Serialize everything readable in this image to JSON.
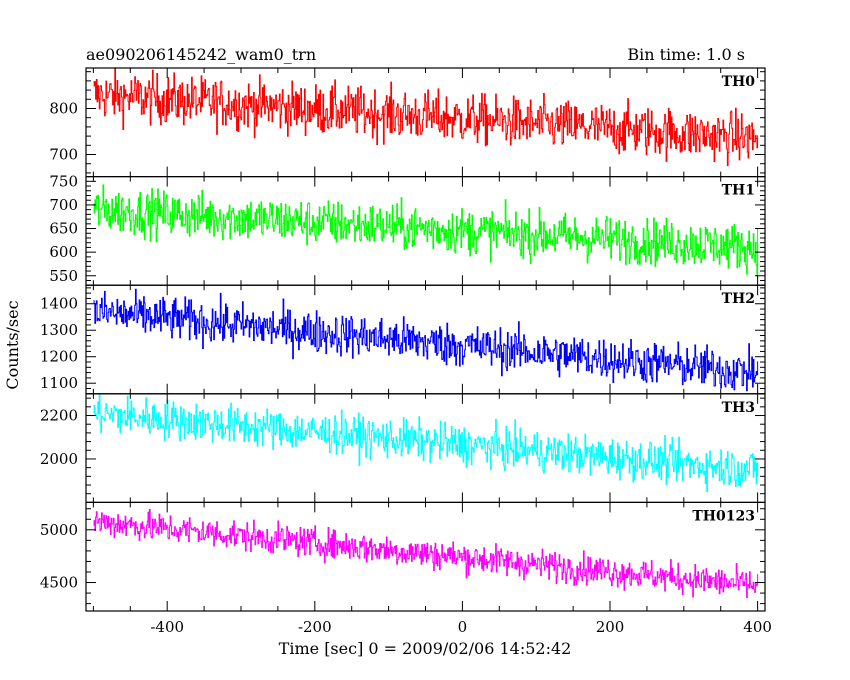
{
  "chart_data": {
    "type": "line",
    "title": "ae090206145242_wam0_trn",
    "subtitle": "Bin time: 1.0 s",
    "xlabel": "Time [sec] 0 = 2009/02/06 14:52:42",
    "ylabel": "Counts/sec",
    "xlim": [
      -510,
      410
    ],
    "xticks": [
      -400,
      -200,
      0,
      200,
      400
    ],
    "grid": false,
    "panels": [
      {
        "name": "TH0",
        "color": "#ff0000",
        "ylim": [
          652,
          888
        ],
        "yticks": [
          700,
          800
        ],
        "trend": [
          {
            "x": -500,
            "y": 830
          },
          {
            "x": 400,
            "y": 735
          }
        ],
        "noise": 27
      },
      {
        "name": "TH1",
        "color": "#00ff00",
        "ylim": [
          530,
          760
        ],
        "yticks": [
          550,
          600,
          650,
          700,
          750
        ],
        "trend": [
          {
            "x": -500,
            "y": 690
          },
          {
            "x": 400,
            "y": 610
          }
        ],
        "noise": 24
      },
      {
        "name": "TH2",
        "color": "#0000ff",
        "ylim": [
          1060,
          1470
        ],
        "yticks": [
          1100,
          1200,
          1300,
          1400
        ],
        "trend": [
          {
            "x": -500,
            "y": 1370
          },
          {
            "x": 400,
            "y": 1140
          }
        ],
        "noise": 40
      },
      {
        "name": "TH3",
        "color": "#00ffff",
        "ylim": [
          1800,
          2300
        ],
        "yticks": [
          2000,
          2200
        ],
        "trend": [
          {
            "x": -500,
            "y": 2210
          },
          {
            "x": 400,
            "y": 1950
          }
        ],
        "noise": 45
      },
      {
        "name": "TH0123",
        "color": "#ff00ff",
        "ylim": [
          4230,
          5260
        ],
        "yticks": [
          4500,
          5000
        ],
        "trend": [
          {
            "x": -500,
            "y": 5080
          },
          {
            "x": 400,
            "y": 4470
          }
        ],
        "noise": 70
      }
    ]
  }
}
